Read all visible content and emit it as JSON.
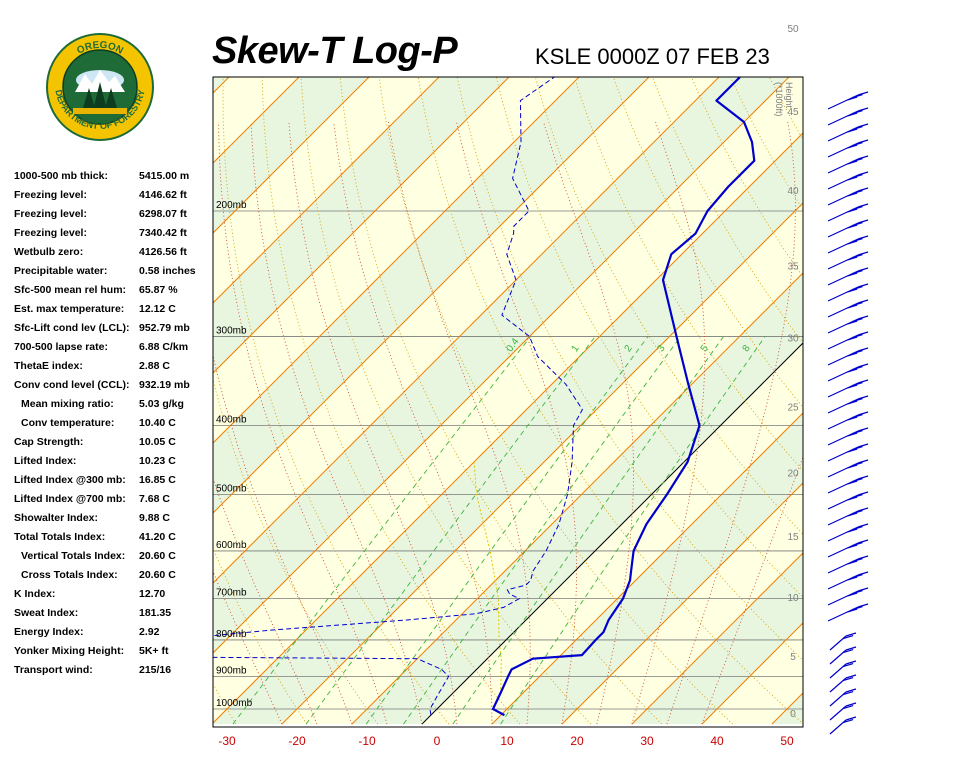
{
  "header": {
    "title": "Skew-T Log-P",
    "subtitle": "KSLE 0000Z 07 FEB 23"
  },
  "logo": {
    "top_text": "OREGON",
    "bottom_text": "DEPARTMENT OF FORESTRY",
    "colors": {
      "ring": "#f5c400",
      "center": "#1f6b38"
    }
  },
  "indices": [
    {
      "label": "1000-500 mb thick:",
      "value": "5415.00 m"
    },
    {
      "label": "Freezing level:",
      "value": "4146.62 ft"
    },
    {
      "label": "Freezing level:",
      "value": "6298.07 ft"
    },
    {
      "label": "Freezing level:",
      "value": "7340.42 ft"
    },
    {
      "label": "Wetbulb zero:",
      "value": "4126.56 ft"
    },
    {
      "label": "Precipitable water:",
      "value": "0.58 inches"
    },
    {
      "label": "Sfc-500 mean rel hum:",
      "value": "65.87 %"
    },
    {
      "label": "Est. max temperature:",
      "value": "12.12 C"
    },
    {
      "label": "Sfc-Lift cond lev (LCL):",
      "value": "952.79 mb"
    },
    {
      "label": "700-500 lapse rate:",
      "value": "6.88 C/km"
    },
    {
      "label": "ThetaE index:",
      "value": "2.88 C"
    },
    {
      "label": "Conv cond level (CCL):",
      "value": "932.19 mb"
    },
    {
      "label": "Mean mixing ratio:",
      "value": "5.03 g/kg",
      "indent": true
    },
    {
      "label": "Conv temperature:",
      "value": "10.40 C",
      "indent": true
    },
    {
      "label": "Cap Strength:",
      "value": "10.05 C"
    },
    {
      "label": "Lifted Index:",
      "value": "10.23 C"
    },
    {
      "label": "Lifted Index @300 mb:",
      "value": "16.85 C"
    },
    {
      "label": "Lifted Index @700 mb:",
      "value": "7.68 C"
    },
    {
      "label": "Showalter Index:",
      "value": "9.88 C"
    },
    {
      "label": "Total Totals Index:",
      "value": "41.20 C"
    },
    {
      "label": "Vertical Totals Index:",
      "value": "20.60 C",
      "indent": true
    },
    {
      "label": "Cross Totals Index:",
      "value": "20.60 C",
      "indent": true
    },
    {
      "label": "K Index:",
      "value": "12.70"
    },
    {
      "label": "Sweat Index:",
      "value": "181.35"
    },
    {
      "label": "Energy Index:",
      "value": "2.92"
    },
    {
      "label": "Yonker Mixing Height:",
      "value": "5K+ ft"
    },
    {
      "label": "Transport wind:",
      "value": "215/16"
    }
  ],
  "chart_data": {
    "type": "skew-t",
    "x_ticks": [
      "-30",
      "-20",
      "-10",
      "0",
      "10",
      "20",
      "30",
      "40",
      "50"
    ],
    "xlim": [
      -33,
      52
    ],
    "pressure_levels": [
      {
        "p": 200,
        "label": "200mb"
      },
      {
        "p": 300,
        "label": "300mb"
      },
      {
        "p": 400,
        "label": "400mb"
      },
      {
        "p": 500,
        "label": "500mb"
      },
      {
        "p": 600,
        "label": "600mb"
      },
      {
        "p": 700,
        "label": "700mb"
      },
      {
        "p": 800,
        "label": "800mb"
      },
      {
        "p": 900,
        "label": "900mb"
      },
      {
        "p": 1000,
        "label": "1000mb"
      }
    ],
    "height_axis": {
      "title_lines": [
        "Height",
        "(*1000ft)"
      ],
      "ticks": [
        "0",
        "5",
        "10",
        "15",
        "20",
        "25",
        "30",
        "35",
        "40",
        "45",
        "50"
      ]
    },
    "mixing_ratio_labels": [
      "0.4",
      "1",
      "2",
      "3",
      "5",
      "8"
    ],
    "temperature_profile": {
      "color": "#0000cc",
      "points": [
        [
          1020,
          10.5
        ],
        [
          1000,
          8
        ],
        [
          950,
          6.8
        ],
        [
          900,
          5.5
        ],
        [
          880,
          5
        ],
        [
          850,
          6.5
        ],
        [
          840,
          13
        ],
        [
          800,
          12.8
        ],
        [
          780,
          12.8
        ],
        [
          750,
          11.8
        ],
        [
          700,
          10.8
        ],
        [
          660,
          9.2
        ],
        [
          640,
          8
        ],
        [
          600,
          5.5
        ],
        [
          550,
          3.5
        ],
        [
          500,
          2.2
        ],
        [
          450,
          0.5
        ],
        [
          400,
          -3
        ],
        [
          350,
          -10.5
        ],
        [
          300,
          -19
        ],
        [
          250,
          -29
        ],
        [
          230,
          -31.5
        ],
        [
          215,
          -31
        ],
        [
          205,
          -32
        ],
        [
          200,
          -32.5
        ],
        [
          185,
          -33
        ],
        [
          170,
          -33
        ],
        [
          160,
          -36
        ],
        [
          150,
          -40
        ],
        [
          140,
          -47
        ],
        [
          130,
          -47
        ],
        [
          120,
          -53
        ],
        [
          110,
          -57
        ]
      ]
    },
    "dewpoint_profile": {
      "color": "#0000cc",
      "points": [
        [
          1020,
          0
        ],
        [
          1000,
          -1
        ],
        [
          950,
          -2
        ],
        [
          900,
          -3
        ],
        [
          880,
          -5
        ],
        [
          850,
          -10
        ],
        [
          845,
          -50
        ],
        [
          835,
          -53
        ],
        [
          825,
          -54
        ],
        [
          815,
          -55
        ],
        [
          810,
          -56
        ],
        [
          790,
          -43
        ],
        [
          775,
          -35
        ],
        [
          750,
          -17
        ],
        [
          735,
          -8
        ],
        [
          720,
          -5
        ],
        [
          700,
          -4
        ],
        [
          690,
          -6
        ],
        [
          680,
          -7
        ],
        [
          675,
          -6
        ],
        [
          670,
          -5
        ],
        [
          660,
          -5
        ],
        [
          640,
          -6
        ],
        [
          600,
          -7
        ],
        [
          550,
          -9
        ],
        [
          500,
          -12
        ],
        [
          450,
          -16
        ],
        [
          400,
          -21
        ],
        [
          380,
          -22
        ],
        [
          350,
          -28
        ],
        [
          320,
          -36
        ],
        [
          300,
          -40
        ],
        [
          280,
          -47
        ],
        [
          250,
          -50
        ],
        [
          230,
          -55
        ],
        [
          215,
          -57
        ],
        [
          210,
          -58
        ],
        [
          200,
          -58
        ],
        [
          180,
          -65
        ],
        [
          160,
          -69
        ],
        [
          140,
          -75
        ],
        [
          120,
          -72
        ],
        [
          110,
          -73
        ]
      ]
    },
    "parcel_profile": {
      "color": "#e6c200",
      "points": [
        [
          950,
          6.8
        ],
        [
          900,
          4.5
        ],
        [
          850,
          2
        ],
        [
          800,
          -1
        ],
        [
          700,
          -7
        ],
        [
          600,
          -15
        ],
        [
          500,
          -25
        ],
        [
          450,
          -30
        ]
      ]
    },
    "surface_barbs": {
      "color": "#0000cc",
      "count": 7
    },
    "wind_barbs_top": {
      "color": "#0000cc",
      "count": 33
    },
    "grid": true,
    "colors": {
      "isotherm": "#f08000",
      "dry_adiabat": "#d4a000",
      "moist_adiabat": "#d24a2a",
      "mixing_ratio": "#3bb43b",
      "freezing": "#000000",
      "band_yellow": "#ffffe2",
      "band_green": "#e8f6e0"
    }
  }
}
